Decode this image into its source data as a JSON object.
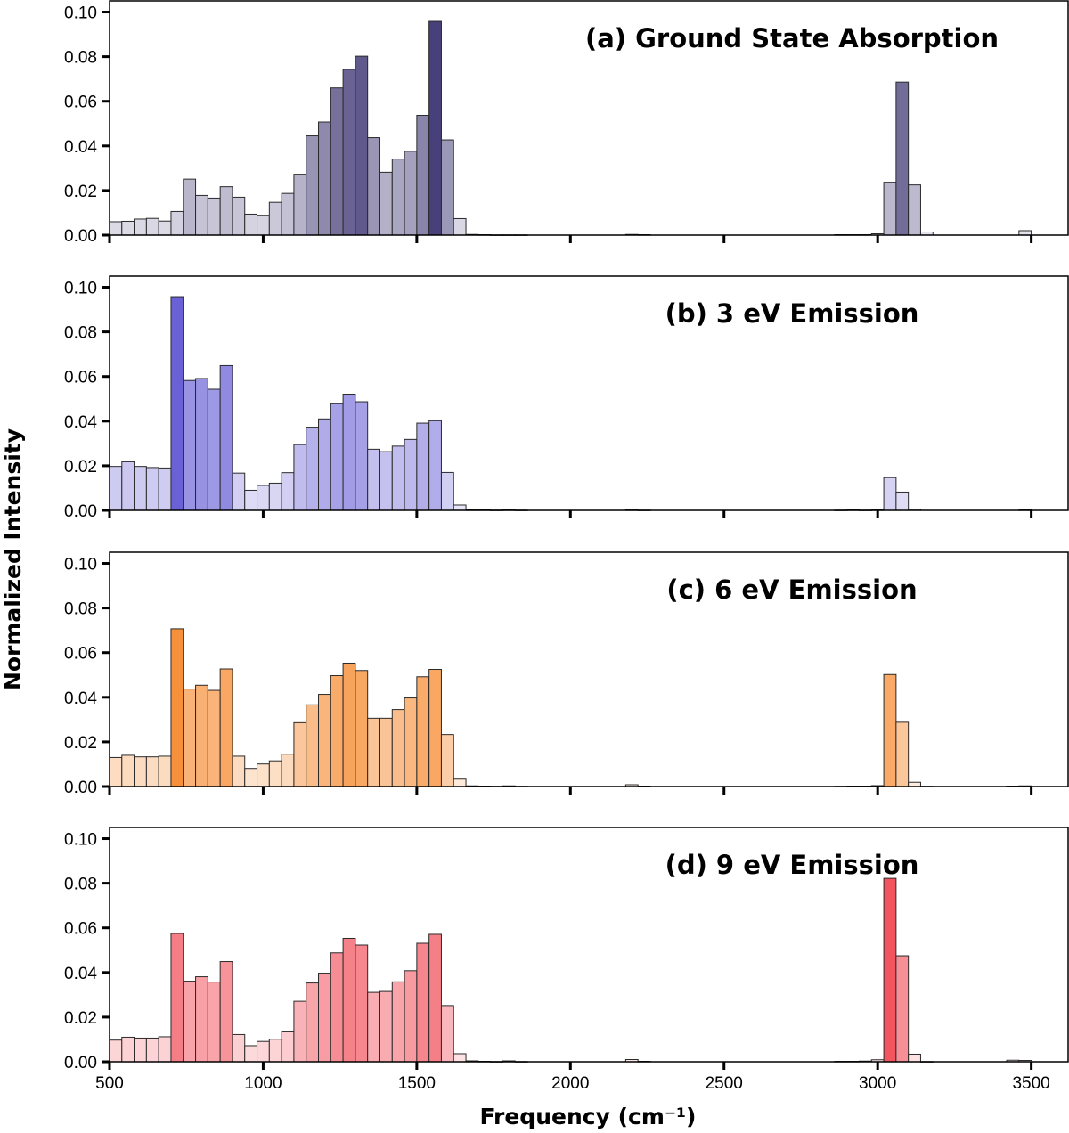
{
  "figure": {
    "xlabel": "Frequency (cm⁻¹)",
    "ylabel": "Normalized Intensity"
  },
  "chart_data": [
    {
      "type": "bar",
      "title": "(a) Ground State Absorption",
      "color": "#48407a",
      "xlim": [
        500,
        3620
      ],
      "ylim": [
        0,
        0.105
      ],
      "yticks": [
        "0.00",
        "0.02",
        "0.04",
        "0.06",
        "0.08",
        "0.10"
      ],
      "xticks": [
        500,
        1000,
        1500,
        2000,
        2500,
        3000,
        3500
      ],
      "xticklabels_shown": false,
      "bin_width": 40,
      "bins": [
        [
          500,
          0.006
        ],
        [
          540,
          0.0062
        ],
        [
          580,
          0.0072
        ],
        [
          620,
          0.0075
        ],
        [
          660,
          0.0063
        ],
        [
          700,
          0.0106
        ],
        [
          740,
          0.0251
        ],
        [
          780,
          0.0178
        ],
        [
          820,
          0.0166
        ],
        [
          860,
          0.0217
        ],
        [
          900,
          0.017
        ],
        [
          940,
          0.0094
        ],
        [
          980,
          0.0089
        ],
        [
          1020,
          0.0147
        ],
        [
          1060,
          0.0187
        ],
        [
          1100,
          0.0273
        ],
        [
          1140,
          0.0445
        ],
        [
          1180,
          0.0507
        ],
        [
          1220,
          0.066
        ],
        [
          1260,
          0.0743
        ],
        [
          1300,
          0.0802
        ],
        [
          1340,
          0.0437
        ],
        [
          1380,
          0.0282
        ],
        [
          1420,
          0.0341
        ],
        [
          1460,
          0.0376
        ],
        [
          1500,
          0.0537
        ],
        [
          1540,
          0.0958
        ],
        [
          1580,
          0.0427
        ],
        [
          1620,
          0.0074
        ],
        [
          1660,
          0.0003
        ],
        [
          1700,
          0.0002
        ],
        [
          1740,
          0.0001
        ],
        [
          1780,
          0.0001
        ],
        [
          1820,
          0.0001
        ],
        [
          2180,
          0.0003
        ],
        [
          2220,
          0.0002
        ],
        [
          2860,
          0.0002
        ],
        [
          2900,
          0.0002
        ],
        [
          2940,
          0.0002
        ],
        [
          2980,
          0.0006
        ],
        [
          3020,
          0.0237
        ],
        [
          3060,
          0.0686
        ],
        [
          3100,
          0.0225
        ],
        [
          3140,
          0.0014
        ],
        [
          3460,
          0.002
        ]
      ]
    },
    {
      "type": "bar",
      "title": "(b) 3 eV Emission",
      "color": "#6a61d6",
      "xlim": [
        500,
        3620
      ],
      "ylim": [
        0,
        0.105
      ],
      "yticks": [
        "0.00",
        "0.02",
        "0.04",
        "0.06",
        "0.08",
        "0.10"
      ],
      "xticks": [
        500,
        1000,
        1500,
        2000,
        2500,
        3000,
        3500
      ],
      "xticklabels_shown": false,
      "bin_width": 40,
      "bins": [
        [
          500,
          0.0197
        ],
        [
          540,
          0.0218
        ],
        [
          580,
          0.0197
        ],
        [
          620,
          0.0192
        ],
        [
          660,
          0.019
        ],
        [
          700,
          0.0958
        ],
        [
          740,
          0.0582
        ],
        [
          780,
          0.0591
        ],
        [
          820,
          0.0543
        ],
        [
          860,
          0.0649
        ],
        [
          900,
          0.0167
        ],
        [
          940,
          0.009
        ],
        [
          980,
          0.0112
        ],
        [
          1020,
          0.0122
        ],
        [
          1060,
          0.0169
        ],
        [
          1100,
          0.0295
        ],
        [
          1140,
          0.0373
        ],
        [
          1180,
          0.041
        ],
        [
          1220,
          0.0478
        ],
        [
          1260,
          0.0521
        ],
        [
          1300,
          0.0487
        ],
        [
          1340,
          0.0274
        ],
        [
          1380,
          0.0263
        ],
        [
          1420,
          0.0288
        ],
        [
          1460,
          0.0318
        ],
        [
          1500,
          0.0391
        ],
        [
          1540,
          0.0402
        ],
        [
          1580,
          0.017
        ],
        [
          1620,
          0.0024
        ],
        [
          1660,
          0.0002
        ],
        [
          1700,
          0.0002
        ],
        [
          1740,
          0.0001
        ],
        [
          1780,
          0.0002
        ],
        [
          1820,
          0.0001
        ],
        [
          2180,
          0.0002
        ],
        [
          2220,
          0.0001
        ],
        [
          2860,
          0.0001
        ],
        [
          2900,
          0.0002
        ],
        [
          2940,
          0.0001
        ],
        [
          2980,
          0.0002
        ],
        [
          3020,
          0.0147
        ],
        [
          3060,
          0.0082
        ],
        [
          3100,
          0.0005
        ],
        [
          3460,
          0.0002
        ]
      ]
    },
    {
      "type": "bar",
      "title": "(c) 6 eV Emission",
      "color": "#f7903a",
      "xlim": [
        500,
        3620
      ],
      "ylim": [
        0,
        0.105
      ],
      "yticks": [
        "0.00",
        "0.02",
        "0.04",
        "0.06",
        "0.08",
        "0.10"
      ],
      "xticks": [
        500,
        1000,
        1500,
        2000,
        2500,
        3000,
        3500
      ],
      "xticklabels_shown": false,
      "bin_width": 40,
      "bins": [
        [
          500,
          0.013
        ],
        [
          540,
          0.014
        ],
        [
          580,
          0.0133
        ],
        [
          620,
          0.0133
        ],
        [
          660,
          0.0136
        ],
        [
          700,
          0.0707
        ],
        [
          740,
          0.0437
        ],
        [
          780,
          0.0454
        ],
        [
          820,
          0.0431
        ],
        [
          860,
          0.0527
        ],
        [
          900,
          0.0136
        ],
        [
          940,
          0.0081
        ],
        [
          980,
          0.0101
        ],
        [
          1020,
          0.0115
        ],
        [
          1060,
          0.0145
        ],
        [
          1100,
          0.0286
        ],
        [
          1140,
          0.0366
        ],
        [
          1180,
          0.0413
        ],
        [
          1220,
          0.0497
        ],
        [
          1260,
          0.0553
        ],
        [
          1300,
          0.052
        ],
        [
          1340,
          0.0306
        ],
        [
          1380,
          0.0306
        ],
        [
          1420,
          0.0345
        ],
        [
          1460,
          0.0397
        ],
        [
          1500,
          0.0492
        ],
        [
          1540,
          0.0525
        ],
        [
          1580,
          0.0233
        ],
        [
          1620,
          0.0033
        ],
        [
          1660,
          0.0003
        ],
        [
          1700,
          0.0002
        ],
        [
          1740,
          0.0001
        ],
        [
          1780,
          0.0003
        ],
        [
          1820,
          0.0001
        ],
        [
          2180,
          0.0008
        ],
        [
          2220,
          0.0002
        ],
        [
          2860,
          0.0001
        ],
        [
          2900,
          0.0002
        ],
        [
          2940,
          0.0002
        ],
        [
          2980,
          0.0004
        ],
        [
          3020,
          0.0502
        ],
        [
          3060,
          0.0288
        ],
        [
          3100,
          0.0019
        ],
        [
          3140,
          0.0001
        ],
        [
          3420,
          0.0002
        ],
        [
          3460,
          0.0003
        ]
      ]
    },
    {
      "type": "bar",
      "title": "(d) 9 eV Emission",
      "color": "#f2555f",
      "xlim": [
        500,
        3620
      ],
      "ylim": [
        0,
        0.105
      ],
      "yticks": [
        "0.00",
        "0.02",
        "0.04",
        "0.06",
        "0.08",
        "0.10"
      ],
      "xticks": [
        500,
        1000,
        1500,
        2000,
        2500,
        3000,
        3500
      ],
      "xticklabels_shown": true,
      "bin_width": 40,
      "bins": [
        [
          500,
          0.0097
        ],
        [
          540,
          0.011
        ],
        [
          580,
          0.0106
        ],
        [
          620,
          0.0106
        ],
        [
          660,
          0.0112
        ],
        [
          700,
          0.0575
        ],
        [
          740,
          0.0361
        ],
        [
          780,
          0.0381
        ],
        [
          820,
          0.0357
        ],
        [
          860,
          0.0449
        ],
        [
          900,
          0.0122
        ],
        [
          940,
          0.0072
        ],
        [
          980,
          0.0091
        ],
        [
          1020,
          0.0101
        ],
        [
          1060,
          0.0134
        ],
        [
          1100,
          0.0271
        ],
        [
          1140,
          0.0353
        ],
        [
          1180,
          0.0397
        ],
        [
          1220,
          0.0488
        ],
        [
          1260,
          0.0553
        ],
        [
          1300,
          0.0523
        ],
        [
          1340,
          0.0311
        ],
        [
          1380,
          0.0315
        ],
        [
          1420,
          0.0358
        ],
        [
          1460,
          0.0408
        ],
        [
          1500,
          0.0531
        ],
        [
          1540,
          0.0571
        ],
        [
          1580,
          0.0252
        ],
        [
          1620,
          0.0036
        ],
        [
          1660,
          0.0004
        ],
        [
          1700,
          0.0002
        ],
        [
          1740,
          0.0001
        ],
        [
          1780,
          0.0004
        ],
        [
          1820,
          0.0001
        ],
        [
          2180,
          0.001
        ],
        [
          2220,
          0.0002
        ],
        [
          2860,
          0.0002
        ],
        [
          2900,
          0.0002
        ],
        [
          2940,
          0.0003
        ],
        [
          2980,
          0.0009
        ],
        [
          3020,
          0.0822
        ],
        [
          3060,
          0.0475
        ],
        [
          3100,
          0.0034
        ],
        [
          3140,
          0.0001
        ],
        [
          3420,
          0.0007
        ],
        [
          3460,
          0.0006
        ]
      ]
    }
  ]
}
